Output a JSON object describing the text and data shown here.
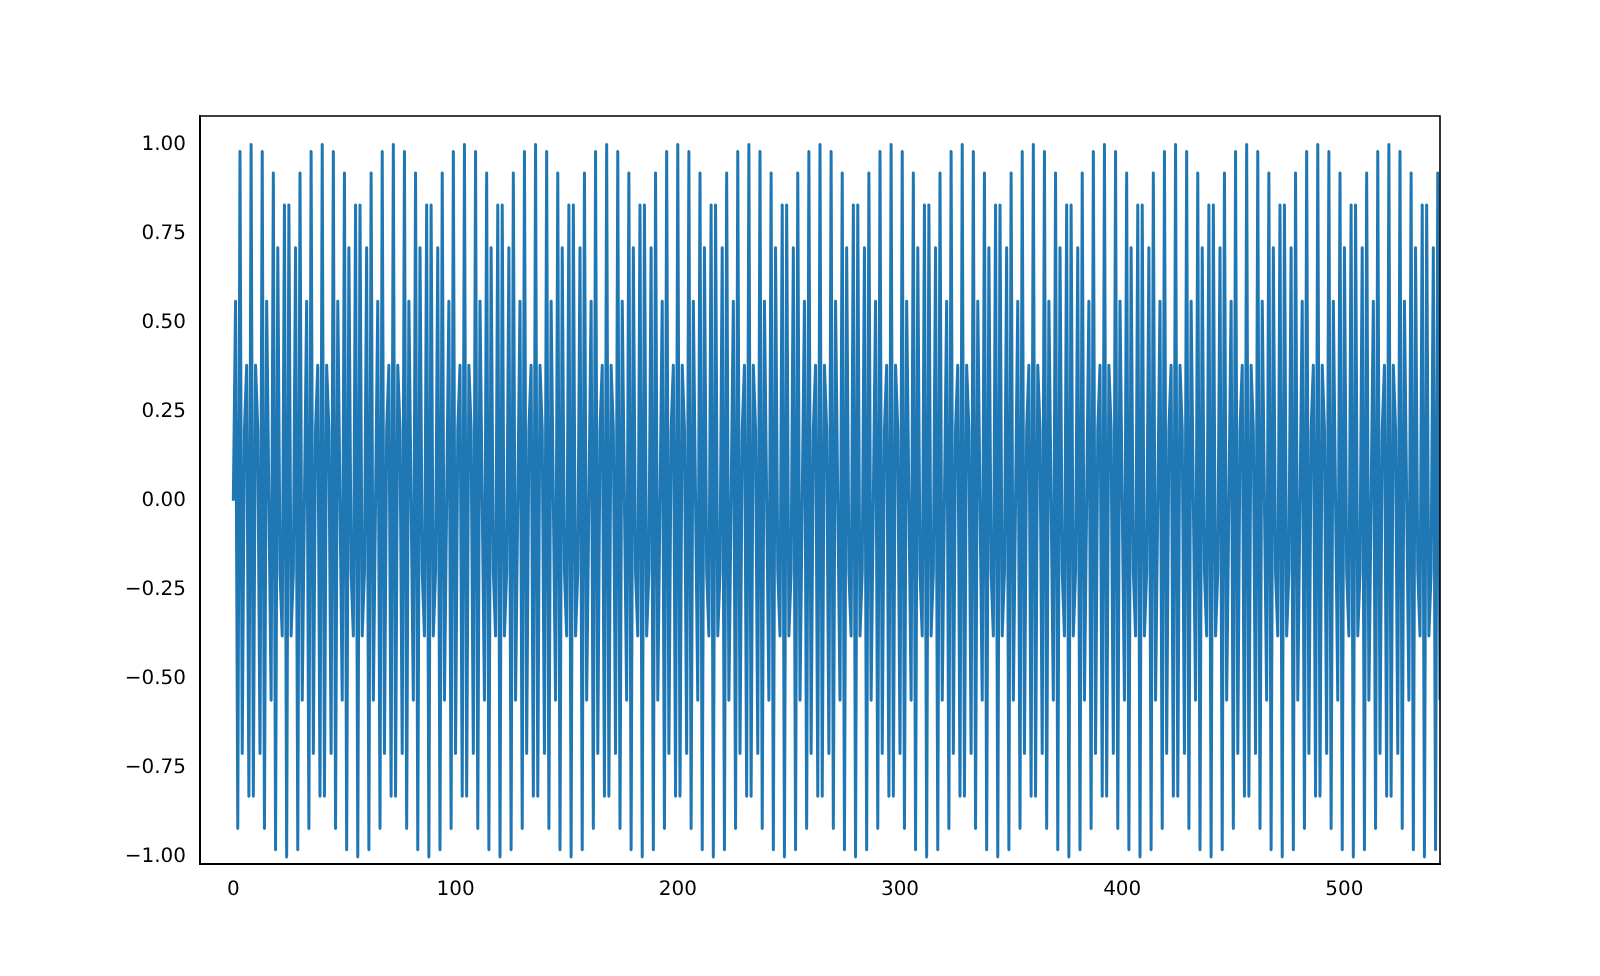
{
  "chart_data": {
    "type": "line",
    "x": [
      0,
      1,
      2,
      3,
      4,
      5,
      6,
      7,
      8,
      9,
      10,
      11,
      12,
      13,
      14,
      15,
      16,
      17,
      18,
      19,
      20,
      21,
      22,
      23,
      24,
      25,
      26,
      27,
      28,
      29,
      30,
      31,
      32,
      33,
      34,
      35,
      36,
      37,
      38,
      39,
      40,
      41,
      42,
      43,
      44,
      45,
      46,
      47,
      48,
      49,
      50,
      51,
      52,
      53,
      54,
      55,
      56,
      57,
      58,
      59,
      60,
      61,
      62,
      63,
      64,
      65,
      66,
      67,
      68,
      69,
      70,
      71,
      72,
      73,
      74,
      75,
      76,
      77,
      78,
      79,
      80,
      81,
      82,
      83,
      84,
      85,
      86,
      87,
      88,
      89,
      90,
      91,
      92,
      93,
      94,
      95,
      96,
      97,
      98,
      99,
      100,
      101,
      102,
      103,
      104,
      105,
      106,
      107,
      108,
      109,
      110,
      111,
      112,
      113,
      114,
      115,
      116,
      117,
      118,
      119,
      120,
      121,
      122,
      123,
      124,
      125,
      126,
      127,
      128,
      129,
      130,
      131,
      132,
      133,
      134,
      135,
      136,
      137,
      138,
      139,
      140,
      141,
      142,
      143,
      144,
      145,
      146,
      147,
      148,
      149,
      150,
      151,
      152,
      153,
      154,
      155,
      156,
      157,
      158,
      159,
      160,
      161,
      162,
      163,
      164,
      165,
      166,
      167,
      168,
      169,
      170,
      171,
      172,
      173,
      174,
      175,
      176,
      177,
      178,
      179,
      180,
      181,
      182,
      183,
      184,
      185,
      186,
      187,
      188,
      189,
      190,
      191,
      192,
      193,
      194,
      195,
      196,
      197,
      198,
      199,
      200,
      201,
      202,
      203,
      204,
      205,
      206,
      207,
      208,
      209,
      210,
      211,
      212,
      213,
      214,
      215,
      216,
      217,
      218,
      219,
      220,
      221,
      222,
      223,
      224,
      225,
      226,
      227,
      228,
      229,
      230,
      231,
      232,
      233,
      234,
      235,
      236,
      237,
      238,
      239,
      240,
      241,
      242,
      243,
      244,
      245,
      246,
      247,
      248,
      249,
      250,
      251,
      252,
      253,
      254,
      255,
      256,
      257,
      258,
      259,
      260,
      261,
      262,
      263,
      264,
      265,
      266,
      267,
      268,
      269,
      270,
      271,
      272,
      273,
      274,
      275,
      276,
      277,
      278,
      279,
      280,
      281,
      282,
      283,
      284,
      285,
      286,
      287,
      288,
      289,
      290,
      291,
      292,
      293,
      294,
      295,
      296,
      297,
      298,
      299,
      300,
      301,
      302,
      303,
      304,
      305,
      306,
      307,
      308,
      309,
      310,
      311,
      312,
      313,
      314,
      315,
      316,
      317,
      318,
      319,
      320,
      321,
      322,
      323,
      324,
      325,
      326,
      327,
      328,
      329,
      330,
      331,
      332,
      333,
      334,
      335,
      336,
      337,
      338,
      339,
      340,
      341,
      342,
      343,
      344,
      345,
      346,
      347,
      348,
      349,
      350,
      351,
      352,
      353,
      354,
      355,
      356,
      357,
      358,
      359,
      360,
      361,
      362,
      363,
      364,
      365,
      366,
      367,
      368,
      369,
      370,
      371,
      372,
      373,
      374,
      375,
      376,
      377,
      378,
      379,
      380,
      381,
      382,
      383,
      384,
      385,
      386,
      387,
      388,
      389,
      390,
      391,
      392,
      393,
      394,
      395,
      396,
      397,
      398,
      399,
      400,
      401,
      402,
      403,
      404,
      405,
      406,
      407,
      408,
      409,
      410,
      411,
      412,
      413,
      414,
      415,
      416,
      417,
      418,
      419,
      420,
      421,
      422,
      423,
      424,
      425,
      426,
      427,
      428,
      429,
      430,
      431,
      432,
      433,
      434,
      435,
      436,
      437,
      438,
      439,
      440,
      441,
      442,
      443,
      444,
      445,
      446,
      447,
      448,
      449,
      450,
      451,
      452,
      453,
      454,
      455,
      456,
      457,
      458,
      459,
      460,
      461,
      462,
      463,
      464,
      465,
      466,
      467,
      468,
      469,
      470,
      471,
      472,
      473,
      474,
      475,
      476,
      477,
      478,
      479,
      480,
      481,
      482,
      483,
      484,
      485,
      486,
      487,
      488,
      489,
      490,
      491,
      492,
      493,
      494,
      495,
      496,
      497,
      498,
      499,
      500,
      501,
      502,
      503,
      504,
      505,
      506,
      507,
      508,
      509,
      510,
      511,
      512,
      513,
      514,
      515,
      516,
      517,
      518,
      519,
      520,
      521,
      522,
      523,
      524,
      525,
      526,
      527,
      528,
      529,
      530,
      531,
      532,
      533,
      534,
      535,
      536,
      537,
      538,
      539,
      540,
      541,
      542,
      543
    ],
    "series": [
      {
        "color": "#1f77b4",
        "values": [
          0,
          0.56,
          -0.92,
          0.98,
          -0.71,
          0.2,
          0.38,
          -0.83,
          1,
          -0.83,
          0.38,
          0.2,
          -0.71,
          0.98,
          -0.92,
          0.56,
          0,
          -0.56,
          0.92,
          -0.98,
          0.71,
          -0.2,
          -0.38,
          0.83,
          -1,
          0.83,
          -0.38,
          -0.2,
          0.71,
          -0.98,
          0.92,
          -0.56,
          0,
          0.56,
          -0.92,
          0.98,
          -0.71,
          0.2,
          0.38,
          -0.83,
          1,
          -0.83,
          0.38,
          0.2,
          -0.71,
          0.98,
          -0.92,
          0.56,
          0,
          -0.56,
          0.92,
          -0.98,
          0.71,
          -0.2,
          -0.38,
          0.83,
          -1,
          0.83,
          -0.38,
          -0.2,
          0.71,
          -0.98,
          0.92,
          -0.56,
          0,
          0.56,
          -0.92,
          0.98,
          -0.71,
          0.2,
          0.38,
          -0.83,
          1,
          -0.83,
          0.38,
          0.2,
          -0.71,
          0.98,
          -0.92,
          0.56,
          0,
          -0.56,
          0.92,
          -0.98,
          0.71,
          -0.2,
          -0.38,
          0.83,
          -1,
          0.83,
          -0.38,
          -0.2,
          0.71,
          -0.98,
          0.92,
          -0.56,
          0,
          0.56,
          -0.92,
          0.98,
          -0.71,
          0.2,
          0.38,
          -0.83,
          1,
          -0.83,
          0.38,
          0.2,
          -0.71,
          0.98,
          -0.92,
          0.56,
          0,
          -0.56,
          0.92,
          -0.98,
          0.71,
          -0.2,
          -0.38,
          0.83,
          -1,
          0.83,
          -0.38,
          -0.2,
          0.71,
          -0.98,
          0.92,
          -0.56,
          0,
          0.56,
          -0.92,
          0.98,
          -0.71,
          0.2,
          0.38,
          -0.83,
          1,
          -0.83,
          0.38,
          0.2,
          -0.71,
          0.98,
          -0.92,
          0.56,
          0,
          -0.56,
          0.92,
          -0.98,
          0.71,
          -0.2,
          -0.38,
          0.83,
          -1,
          0.83,
          -0.38,
          -0.2,
          0.71,
          -0.98,
          0.92,
          -0.56,
          0,
          0.56,
          -0.92,
          0.98,
          -0.71,
          0.2,
          0.38,
          -0.83,
          1,
          -0.83,
          0.38,
          0.2,
          -0.71,
          0.98,
          -0.92,
          0.56,
          0,
          -0.56,
          0.92,
          -0.98,
          0.71,
          -0.2,
          -0.38,
          0.83,
          -1,
          0.83,
          -0.38,
          -0.2,
          0.71,
          -0.98,
          0.92,
          -0.56,
          0,
          0.56,
          -0.92,
          0.98,
          -0.71,
          0.2,
          0.38,
          -0.83,
          1,
          -0.83,
          0.38,
          0.2,
          -0.71,
          0.98,
          -0.92,
          0.56,
          0,
          -0.56,
          0.92,
          -0.98,
          0.71,
          -0.2,
          -0.38,
          0.83,
          -1,
          0.83,
          -0.38,
          -0.2,
          0.71,
          -0.98,
          0.92,
          -0.56,
          0,
          0.56,
          -0.92,
          0.98,
          -0.71,
          0.2,
          0.38,
          -0.83,
          1,
          -0.83,
          0.38,
          0.2,
          -0.71,
          0.98,
          -0.92,
          0.56,
          0,
          -0.56,
          0.92,
          -0.98,
          0.71,
          -0.2,
          -0.38,
          0.83,
          -1,
          0.83,
          -0.38,
          -0.2,
          0.71,
          -0.98,
          0.92,
          -0.56,
          0,
          0.56,
          -0.92,
          0.98,
          -0.71,
          0.2,
          0.38,
          -0.83,
          1,
          -0.83,
          0.38,
          0.2,
          -0.71,
          0.98,
          -0.92,
          0.56,
          0,
          -0.56,
          0.92,
          -0.98,
          0.71,
          -0.2,
          -0.38,
          0.83,
          -1,
          0.83,
          -0.38,
          -0.2,
          0.71,
          -0.98,
          0.92,
          -0.56,
          0,
          0.56,
          -0.92,
          0.98,
          -0.71,
          0.2,
          0.38,
          -0.83,
          1,
          -0.83,
          0.38,
          0.2,
          -0.71,
          0.98,
          -0.92,
          0.56,
          0,
          -0.56,
          0.92,
          -0.98,
          0.71,
          -0.2,
          -0.38,
          0.83,
          -1,
          0.83,
          -0.38,
          -0.2,
          0.71,
          -0.98,
          0.92,
          -0.56,
          0,
          0.56,
          -0.92,
          0.98,
          -0.71,
          0.2,
          0.38,
          -0.83,
          1,
          -0.83,
          0.38,
          0.2,
          -0.71,
          0.98,
          -0.92,
          0.56,
          0,
          -0.56,
          0.92,
          -0.98,
          0.71,
          -0.2,
          -0.38,
          0.83,
          -1,
          0.83,
          -0.38,
          -0.2,
          0.71,
          -0.98,
          0.92,
          -0.56,
          0,
          0.56,
          -0.92,
          0.98,
          -0.71,
          0.2,
          0.38,
          -0.83,
          1,
          -0.83,
          0.38,
          0.2,
          -0.71,
          0.98,
          -0.92,
          0.56,
          0,
          -0.56,
          0.92,
          -0.98,
          0.71,
          -0.2,
          -0.38,
          0.83,
          -1,
          0.83,
          -0.38,
          -0.2,
          0.71,
          -0.98,
          0.92,
          -0.56,
          0,
          0.56,
          -0.92,
          0.98,
          -0.71,
          0.2,
          0.38,
          -0.83,
          1,
          -0.83,
          0.38,
          0.2,
          -0.71,
          0.98,
          -0.92,
          0.56,
          0,
          -0.56,
          0.92,
          -0.98,
          0.71,
          -0.2,
          -0.38,
          0.83,
          -1,
          0.83,
          -0.38,
          -0.2,
          0.71,
          -0.98,
          0.92,
          -0.56,
          0,
          0.56,
          -0.92,
          0.98,
          -0.71,
          0.2,
          0.38,
          -0.83,
          1,
          -0.83,
          0.38,
          0.2,
          -0.71,
          0.98,
          -0.92,
          0.56,
          0,
          -0.56,
          0.92,
          -0.98,
          0.71,
          -0.2,
          -0.38,
          0.83,
          -1,
          0.83,
          -0.38,
          -0.2,
          0.71,
          -0.98,
          0.92,
          -0.56,
          0,
          0.56,
          -0.92,
          0.98,
          -0.71,
          0.2,
          0.38,
          -0.83,
          1,
          -0.83,
          0.38,
          0.2,
          -0.71,
          0.98,
          -0.92,
          0.56,
          0,
          -0.56,
          0.92,
          -0.98,
          0.71,
          -0.2,
          -0.38,
          0.83,
          -1,
          0.83,
          -0.38,
          -0.2,
          0.71,
          -0.98,
          0.92,
          -0.56,
          0,
          0.56,
          -0.92,
          0.98,
          -0.71,
          0.2,
          0.38,
          -0.83,
          1,
          -0.83,
          0.38,
          0.2,
          -0.71,
          0.98,
          -0.92,
          0.56,
          0,
          -0.56,
          0.92,
          -0.98,
          0.71,
          -0.2,
          -0.38,
          0.83,
          -1,
          0.83,
          -0.38,
          -0.2,
          0.71,
          -0.98,
          0.92,
          -0.56,
          0,
          0.56,
          -0.92,
          0.98,
          -0.71,
          0.2,
          0.38,
          -0.83,
          1,
          -0.83,
          0.38,
          0.2,
          -0.71,
          0.98,
          -0.92,
          0.56,
          0,
          -0.56,
          0.92,
          -0.98,
          0.71,
          -0.2,
          -0.38,
          0.83,
          -1,
          0.83,
          -0.38,
          -0.2,
          0.71,
          -0.98,
          0.92,
          -0.56
        ]
      }
    ],
    "xlim": [
      -15,
      543
    ],
    "xticks": [
      0,
      100,
      200,
      300,
      400,
      500
    ],
    "ylim": [
      -1.02,
      1.08
    ],
    "yticks": [
      {
        "value": -1,
        "label": "−1.00"
      },
      {
        "value": -0.75,
        "label": "−0.75"
      },
      {
        "value": -0.5,
        "label": "−0.50"
      },
      {
        "value": -0.25,
        "label": "−0.25"
      },
      {
        "value": 0,
        "label": "0.00"
      },
      {
        "value": 0.25,
        "label": "0.25"
      },
      {
        "value": 0.5,
        "label": "0.50"
      },
      {
        "value": 0.75,
        "label": "0.75"
      },
      {
        "value": 1,
        "label": "1.00"
      }
    ],
    "grid": false,
    "legend": false
  }
}
